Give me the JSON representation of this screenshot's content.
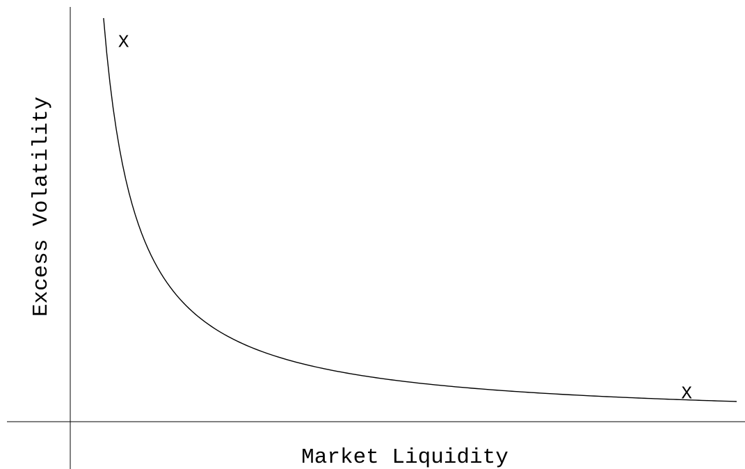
{
  "chart_data": {
    "type": "line",
    "title": "",
    "xlabel": "Market Liquidity",
    "ylabel": "Excess Volatility",
    "grid": false,
    "legend": "none",
    "axis_color": "#000000",
    "line_color": "#000000",
    "series": [
      {
        "points": [
          [
            0.05,
            1.0
          ],
          [
            0.06,
            0.833
          ],
          [
            0.07,
            0.714
          ],
          [
            0.08,
            0.625
          ],
          [
            0.09,
            0.556
          ],
          [
            0.1,
            0.5
          ],
          [
            0.12,
            0.417
          ],
          [
            0.14,
            0.357
          ],
          [
            0.16,
            0.3125
          ],
          [
            0.18,
            0.278
          ],
          [
            0.2,
            0.25
          ],
          [
            0.25,
            0.2
          ],
          [
            0.3,
            0.167
          ],
          [
            0.35,
            0.143
          ],
          [
            0.4,
            0.125
          ],
          [
            0.45,
            0.111
          ],
          [
            0.5,
            0.1
          ],
          [
            0.6,
            0.083
          ],
          [
            0.7,
            0.071
          ],
          [
            0.8,
            0.0625
          ],
          [
            0.9,
            0.056
          ],
          [
            1.0,
            0.05
          ]
        ]
      }
    ],
    "annotations": [
      {
        "text": "X",
        "x": 0.08,
        "y": 0.94
      },
      {
        "text": "X",
        "x": 0.925,
        "y": 0.07
      }
    ]
  }
}
